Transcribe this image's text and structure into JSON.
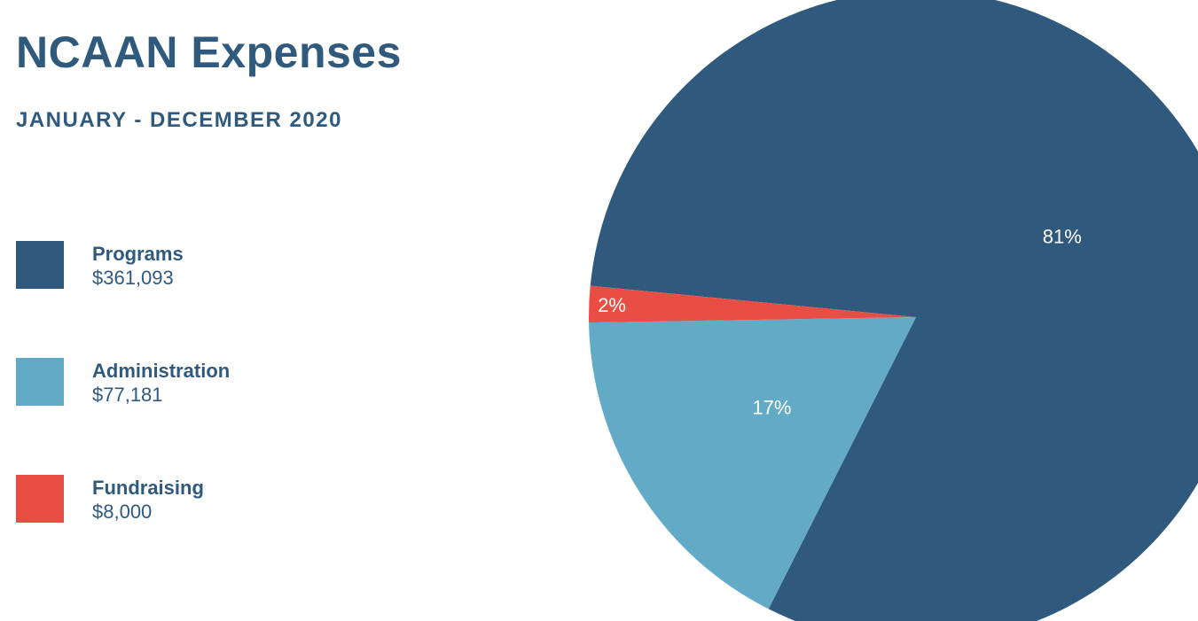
{
  "chart_data": {
    "type": "pie",
    "title": "NCAAN Expenses",
    "subtitle": "JANUARY - DECEMBER 2020",
    "legend_position": "left",
    "slices": [
      {
        "label": "Programs",
        "amount": "$361,093",
        "value": 361093,
        "percent_label": "81%",
        "color": "#2f5a7e"
      },
      {
        "label": "Administration",
        "amount": "$77,181",
        "value": 77181,
        "percent_label": "17%",
        "color": "#63aac6"
      },
      {
        "label": "Fundraising",
        "amount": "$8,000",
        "value": 8000,
        "percent_label": "2%",
        "color": "#e94e44"
      }
    ]
  },
  "colors": {
    "text": "#2f5a7e"
  }
}
